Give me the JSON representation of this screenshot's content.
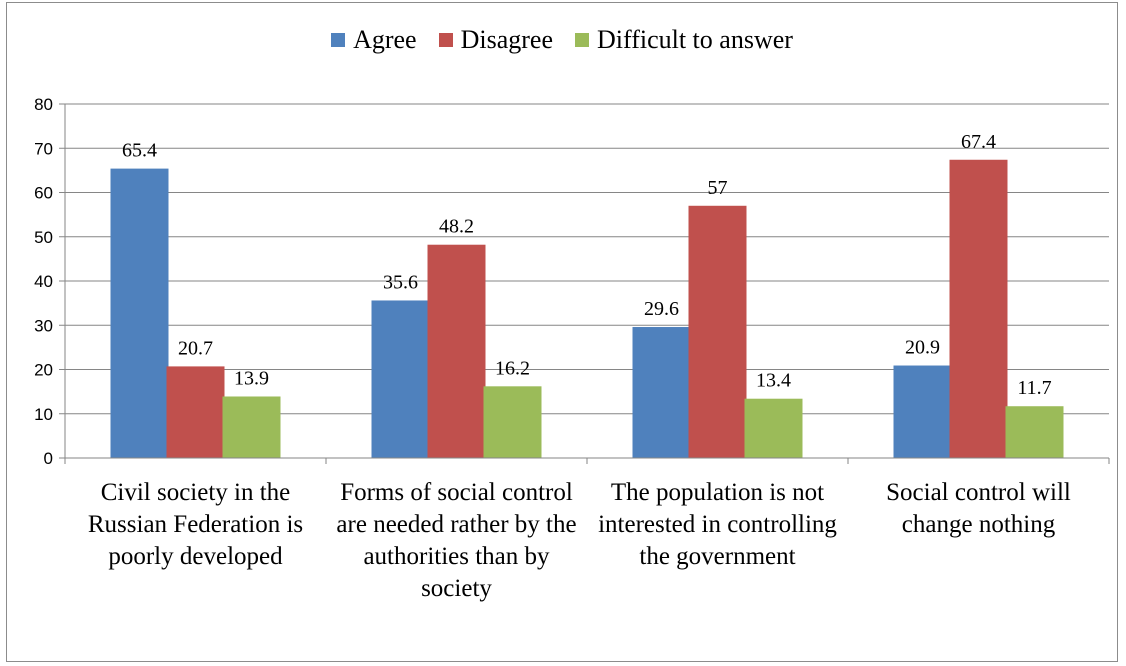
{
  "chart_data": {
    "type": "bar",
    "categories": [
      "Civil society in the Russian Federation is poorly developed",
      "Forms of social control are needed rather by the authorities than by society",
      "The population is not interested in controlling the government",
      "Social control will change nothing"
    ],
    "series": [
      {
        "name": "Agree",
        "values": [
          65.4,
          35.6,
          29.6,
          20.9
        ],
        "labels": [
          "65.4",
          "35.6",
          "29.6",
          "20.9"
        ],
        "color": "#4f81bd"
      },
      {
        "name": "Disagree",
        "values": [
          20.7,
          48.2,
          57,
          67.4
        ],
        "labels": [
          "20.7",
          "48.2",
          "57",
          "67.4"
        ],
        "color": "#c0504d"
      },
      {
        "name": "Difficult to answer",
        "values": [
          13.9,
          16.2,
          13.4,
          11.7
        ],
        "labels": [
          "13.9",
          "16.2",
          "13.4",
          "11.7"
        ],
        "color": "#9bbb59"
      }
    ],
    "ylim": [
      0,
      80
    ],
    "yticks": [
      "0",
      "10",
      "20",
      "30",
      "40",
      "50",
      "60",
      "70",
      "80"
    ],
    "grid": true,
    "legend_position": "top"
  }
}
